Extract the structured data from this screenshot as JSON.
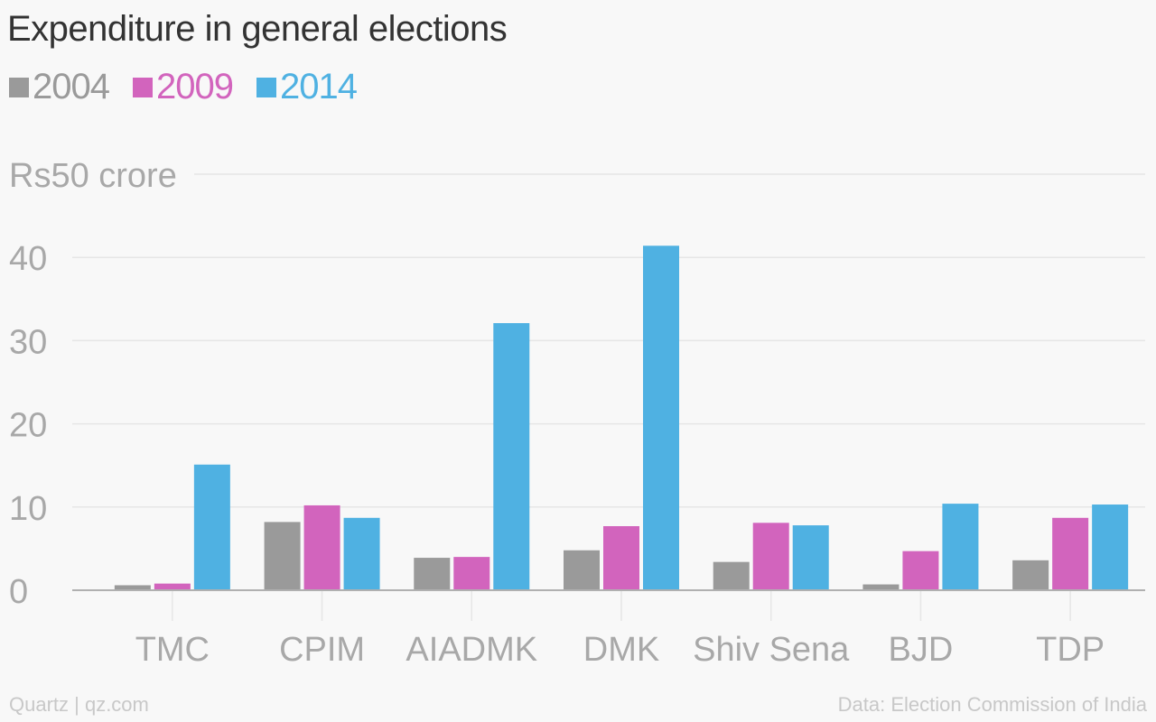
{
  "title": "Expenditure in general elections",
  "footer": {
    "credit": "Quartz | qz.com",
    "source": "Data: Election Commission of India"
  },
  "colors": {
    "2004": "#9a9a9a",
    "2009": "#d264bd",
    "2014": "#4fb1e2",
    "grid": "#e6e6e6",
    "axis": "#b0b0b0",
    "tick_text": "#a8a8a8"
  },
  "chart_data": {
    "type": "bar",
    "title": "Expenditure in general elections",
    "ylabel": "",
    "xlabel": "",
    "ylim": [
      0,
      50
    ],
    "yticks": [
      0,
      10,
      20,
      30,
      40
    ],
    "top_tick_label": "Rs50 crore",
    "grid": true,
    "legend": "top-left",
    "categories": [
      "TMC",
      "CPIM",
      "AIADMK",
      "DMK",
      "Shiv Sena",
      "BJD",
      "TDP"
    ],
    "series": [
      {
        "name": "2004",
        "values": [
          0.6,
          8.2,
          3.9,
          4.8,
          3.4,
          0.7,
          3.6
        ]
      },
      {
        "name": "2009",
        "values": [
          0.8,
          10.2,
          4.0,
          7.7,
          8.1,
          4.7,
          8.7
        ]
      },
      {
        "name": "2014",
        "values": [
          15.1,
          8.7,
          32.1,
          41.4,
          7.8,
          10.4,
          10.3
        ]
      }
    ]
  }
}
